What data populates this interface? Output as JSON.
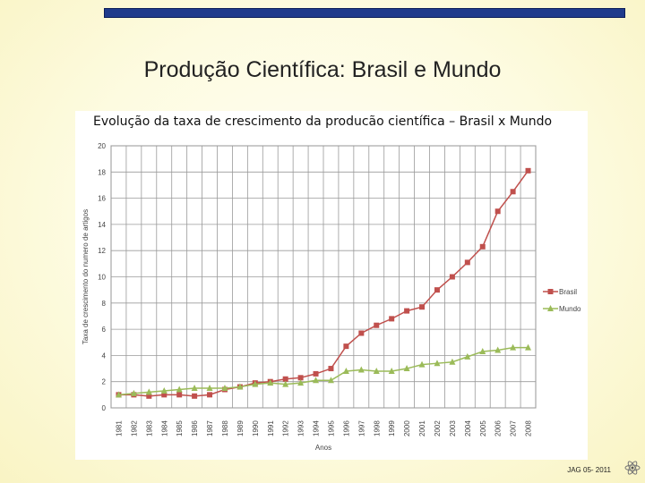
{
  "slide": {
    "title": "Produção Científica: Brasil e Mundo",
    "footer": "JAG 05- 2011"
  },
  "chart_data": {
    "type": "line",
    "title": "Evolução da taxa de crescimento da producão científica – Brasil x Mundo",
    "xlabel": "Anos",
    "ylabel": "Taxa de crescimento do numero de artigos",
    "ylim": [
      0,
      20
    ],
    "yticks": [
      0,
      2,
      4,
      6,
      8,
      10,
      12,
      14,
      16,
      18,
      20
    ],
    "grid": true,
    "legend": "right",
    "categories": [
      "1981",
      "1982",
      "1983",
      "1984",
      "1985",
      "1986",
      "1987",
      "1988",
      "1989",
      "1990",
      "1991",
      "1992",
      "1993",
      "1994",
      "1995",
      "1996",
      "1997",
      "1998",
      "1999",
      "2000",
      "2001",
      "2002",
      "2003",
      "2004",
      "2005",
      "2006",
      "2007",
      "2008"
    ],
    "series": [
      {
        "name": "Brasil",
        "color": "#c0504d",
        "marker": "square",
        "values": [
          1.0,
          1.0,
          0.9,
          1.0,
          1.0,
          0.9,
          1.0,
          1.4,
          1.6,
          1.9,
          2.0,
          2.2,
          2.3,
          2.6,
          3.0,
          4.7,
          5.7,
          6.3,
          6.8,
          7.4,
          7.7,
          9.0,
          10.0,
          11.1,
          12.3,
          15.0,
          16.5,
          18.1
        ]
      },
      {
        "name": "Mundo",
        "color": "#9bbb59",
        "marker": "triangle",
        "values": [
          1.0,
          1.1,
          1.2,
          1.3,
          1.4,
          1.5,
          1.5,
          1.5,
          1.6,
          1.8,
          1.9,
          1.8,
          1.9,
          2.1,
          2.1,
          2.8,
          2.9,
          2.8,
          2.8,
          3.0,
          3.3,
          3.4,
          3.5,
          3.9,
          4.3,
          4.4,
          4.6,
          4.6
        ]
      }
    ]
  }
}
